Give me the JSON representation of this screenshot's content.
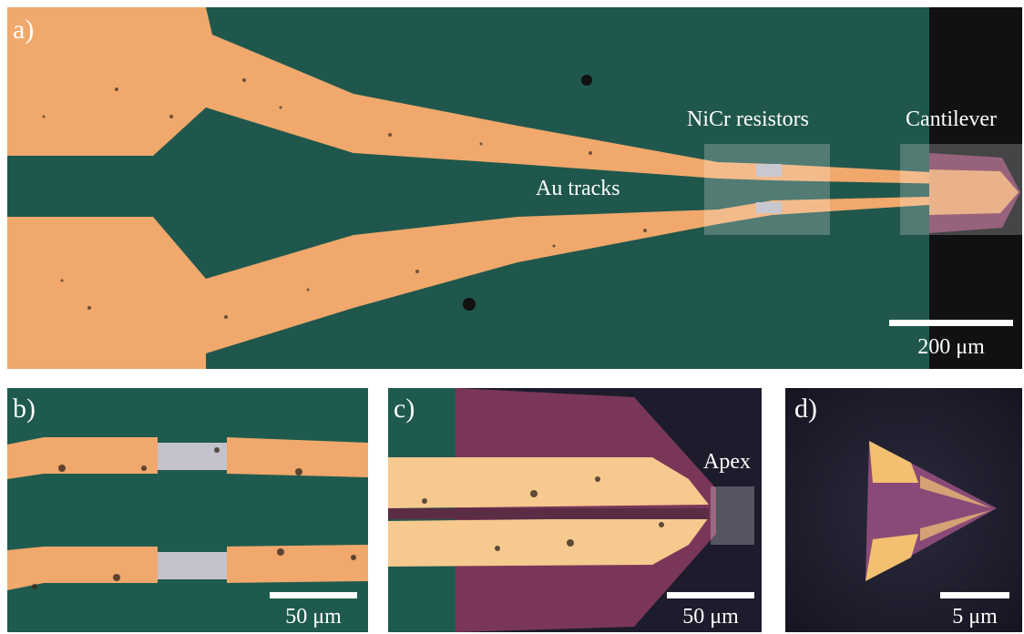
{
  "figure": {
    "panels": [
      {
        "id": "a",
        "label": "a)",
        "scale_label": "200 μm",
        "annotations": {
          "tracks": "Au tracks",
          "resistors": "NiCr resistors",
          "cantilever": "Cantilever"
        }
      },
      {
        "id": "b",
        "label": "b)",
        "scale_label": "50 μm"
      },
      {
        "id": "c",
        "label": "c)",
        "scale_label": "50 μm",
        "annotations": {
          "apex": "Apex"
        }
      },
      {
        "id": "d",
        "label": "d)",
        "scale_label": "5 μm"
      }
    ]
  },
  "colors": {
    "substrate_teal": "#1f5a4e",
    "gold": "#f0a86c",
    "gold_bright": "#f6c98e",
    "nicr_gray": "#b9b9c4",
    "cantilever_purple": "#7a3658",
    "background_dark": "#1a1a26",
    "highlight_box": "rgba(255,255,255,0.22)"
  }
}
